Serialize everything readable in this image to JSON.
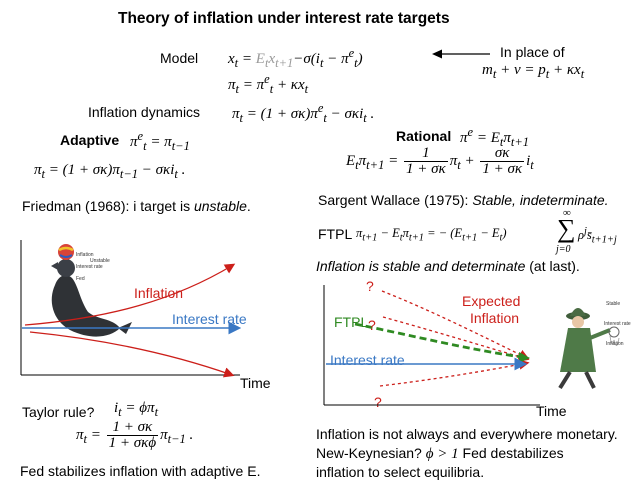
{
  "title": "Theory of inflation under interest rate targets",
  "model": {
    "label": "Model",
    "eq1_lhs": "x",
    "eq1_expect": "E",
    "eq1_rest": "−σ(i",
    "eq2": "π",
    "in_place_of": "In place of",
    "alt_eq": "m",
    "arrow_icon": "left-arrow"
  },
  "inflation_dynamics": {
    "label": "Inflation dynamics",
    "eq": "π"
  },
  "adaptive": {
    "label": "Adaptive",
    "expect_eq": "π",
    "dynamics": "π"
  },
  "rational": {
    "label": "Rational",
    "expect_eq": "π",
    "lhs": "E",
    "num1": "1",
    "den1": "1 + σκ",
    "num2": "σκ",
    "den2": "1 + σκ"
  },
  "friedman": {
    "text_pre": "Friedman (1968): i target is ",
    "text_em": "unstable",
    "text_post": "."
  },
  "sargent": {
    "text_pre": "Sargent Wallace (1975): ",
    "text_em": "Stable, indeterminate."
  },
  "ftpl": {
    "label": "FTPL",
    "sum_top": "∞",
    "sum_bottom": "j=0"
  },
  "ftpl_claim": {
    "text_em": "Inflation is stable and determinate",
    "text_post": " (at last)."
  },
  "left_chart": {
    "inflation_label": "Inflation",
    "interest_label": "Interest rate",
    "time_label": "Time",
    "seal_labels": [
      "Inflation",
      "Interest rate",
      "Fed",
      "Unstable"
    ],
    "colors": {
      "inflation": "#cc1f1a",
      "interest": "#3a78c4"
    }
  },
  "right_chart": {
    "q_marks": [
      "?",
      "?",
      "?"
    ],
    "ftpl_label": "FTPL",
    "expected_label_1": "Expected",
    "expected_label_2": "Inflation",
    "interest_label": "Interest rate",
    "time_label": "Time",
    "figure_labels": [
      "Stable",
      "Interest rate",
      "Inflation"
    ],
    "colors": {
      "expected": "#cc1f1a",
      "ftpl": "#2f8a22",
      "interest": "#3a78c4"
    }
  },
  "taylor": {
    "label": "Taylor rule?",
    "rule": "i",
    "num": "1 + σκ",
    "den": "1 + σκϕ"
  },
  "fed_adaptive": "Fed stabilizes inflation with adaptive E.",
  "conclusion": {
    "line1": "Inflation is not always and everywhere monetary.",
    "line2_pre": "New-Keynesian? ",
    "line2_post": " Fed destabilizes",
    "line3": "inflation to select equilibria."
  }
}
